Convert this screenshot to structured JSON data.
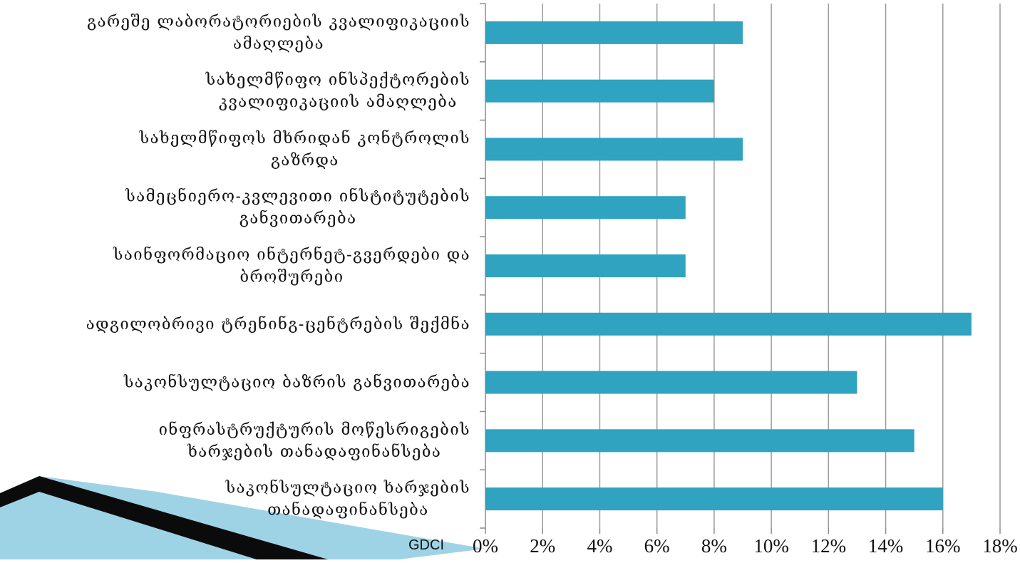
{
  "brand_label": "GDCI",
  "colors": {
    "bar": "#2fa3bf",
    "grid": "#9a9a9a",
    "axis": "#8c8c8c",
    "decoration_dark": "#0b0b0b",
    "decoration_light": "#9ed3e6"
  },
  "chart_data": {
    "type": "bar",
    "orientation": "horizontal",
    "categories": [
      [
        "გარეშე ლაბორატორიების კვალიფიკაციის",
        "ამაღლება"
      ],
      [
        "სახელმწიფო ინსპექტორების",
        "კვალიფიკაციის ამაღლება"
      ],
      [
        "სახელმწიფოს მხრიდან კონტროლის",
        "გაზრდა"
      ],
      [
        "სამეცნიერო-კვლევითი ინსტიტუტების",
        "განვითარება"
      ],
      [
        "საინფორმაციო ინტერნეტ-გვერდები და",
        "ბროშურები"
      ],
      [
        "ადგილობრივი ტრენინგ-ცენტრების შექმნა"
      ],
      [
        "საკონსულტაციო ბაზრის განვითარება"
      ],
      [
        "ინფრასტრუქტურის მოწესრიგების",
        "ხარჯების თანადაფინანსება"
      ],
      [
        "საკონსულტაციო ხარჯების",
        "თანადაფინანსება"
      ]
    ],
    "values": [
      0.09,
      0.08,
      0.09,
      0.07,
      0.07,
      0.17,
      0.13,
      0.15,
      0.16
    ],
    "xlim": [
      0,
      0.18
    ],
    "ticks": [
      0,
      0.02,
      0.04,
      0.06,
      0.08,
      0.1,
      0.12,
      0.14,
      0.16,
      0.18
    ],
    "tick_labels": [
      "0%",
      "2%",
      "4%",
      "6%",
      "8%",
      "10%",
      "12%",
      "14%",
      "16%",
      "18%"
    ],
    "grid": true,
    "legend": "none"
  }
}
